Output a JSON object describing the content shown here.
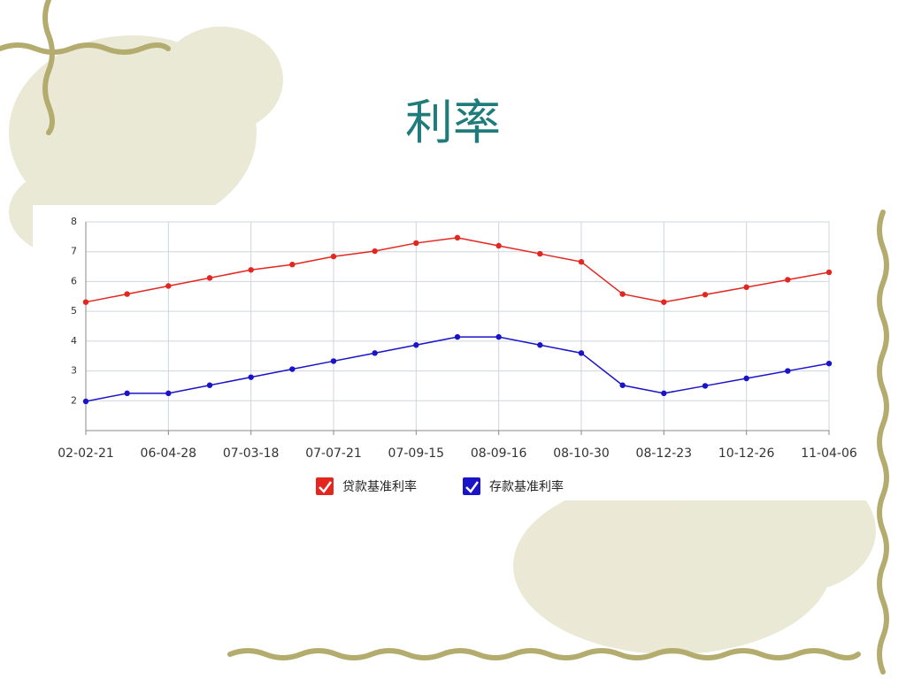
{
  "title": "利率",
  "chart_data": {
    "type": "line",
    "categories": [
      "02-02-21",
      null,
      "06-04-28",
      null,
      "07-03-18",
      null,
      "07-07-21",
      null,
      "07-09-15",
      null,
      "08-09-16",
      null,
      "08-10-30",
      null,
      "08-12-23",
      null,
      "10-12-26",
      null,
      "11-04-06"
    ],
    "series": [
      {
        "name": "贷款基准利率",
        "color": "#e3261f",
        "values": [
          5.31,
          5.58,
          5.85,
          6.12,
          6.39,
          6.57,
          6.84,
          7.02,
          7.29,
          7.47,
          7.2,
          6.93,
          6.66,
          5.58,
          5.31,
          5.56,
          5.81,
          6.06,
          6.31
        ]
      },
      {
        "name": "存款基准利率",
        "color": "#1a14c8",
        "values": [
          1.98,
          2.25,
          2.25,
          2.52,
          2.79,
          3.06,
          3.33,
          3.6,
          3.87,
          4.14,
          4.14,
          3.87,
          3.6,
          2.52,
          2.25,
          2.5,
          2.75,
          3.0,
          3.25
        ]
      }
    ],
    "ylim": [
      1,
      8
    ],
    "yticks": [
      2,
      3,
      4,
      5,
      6,
      7,
      8
    ],
    "grid": true
  }
}
